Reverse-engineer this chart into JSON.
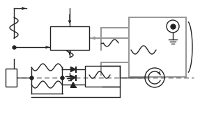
{
  "bg_color": "#ffffff",
  "lc": "#222222",
  "gc": "#999999",
  "dc": "#555555",
  "fig_width": 2.87,
  "fig_height": 1.76,
  "dpi": 100
}
